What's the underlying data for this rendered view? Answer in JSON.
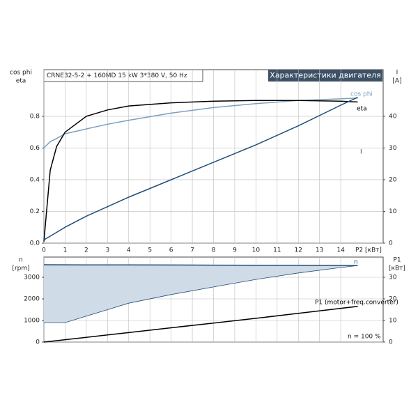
{
  "chart_data": [
    {
      "type": "line",
      "header": "CRNE32-5-2 + 160MD   15 kW   3*380 V, 50 Hz",
      "title": "Характеристики двигателя",
      "ylabel": [
        "cos phi",
        "eta"
      ],
      "y2label": [
        "I",
        "[A]"
      ],
      "xlabel": "P2 [кВт]",
      "xlim": [
        0,
        16
      ],
      "xticks": [
        0,
        1,
        2,
        3,
        4,
        5,
        6,
        7,
        8,
        9,
        10,
        11,
        12,
        13,
        14
      ],
      "ylim": [
        0,
        1.094
      ],
      "yticks": [
        {
          "value": 0,
          "label": "0.0"
        },
        0.2,
        0.4,
        0.6,
        0.8
      ],
      "y2lim": [
        0,
        54.7
      ],
      "y2ticks": [
        0,
        10,
        20,
        30,
        40
      ],
      "grid": true,
      "x": [
        0,
        0.3,
        0.6,
        1,
        2,
        3,
        4,
        6,
        8,
        10,
        12,
        14,
        14.8
      ],
      "series": [
        {
          "name": "cos phi",
          "color": "#7b9fbd",
          "values": [
            0.6,
            0.64,
            0.66,
            0.69,
            0.72,
            0.75,
            0.775,
            0.82,
            0.855,
            0.88,
            0.9,
            0.91,
            0.915
          ]
        },
        {
          "name": "eta",
          "color": "#000000",
          "values": [
            0.01,
            0.46,
            0.61,
            0.7,
            0.8,
            0.84,
            0.865,
            0.885,
            0.895,
            0.9,
            0.9,
            0.895,
            0.89
          ]
        },
        {
          "name": "I",
          "color": "#1f4e79",
          "axis": "y2",
          "values": [
            1,
            2.2,
            3.4,
            5,
            8.5,
            11.5,
            14.5,
            20,
            25.5,
            31,
            37,
            43.5,
            46
          ]
        }
      ]
    },
    {
      "type": "band",
      "ylabel": [
        "n",
        "[rpm]"
      ],
      "y2label": [
        "P1",
        "[кВт]"
      ],
      "xlim": [
        0,
        16
      ],
      "xticks": [
        0,
        1,
        2,
        3,
        4,
        5,
        6,
        7,
        8,
        9,
        10,
        11,
        12,
        13,
        14
      ],
      "ylim": [
        0,
        3935
      ],
      "yticks": [
        0,
        1000,
        2000,
        3000
      ],
      "y2lim": [
        0,
        39.35
      ],
      "y2ticks": [
        0,
        10,
        20,
        30
      ],
      "grid": true,
      "annotation": "n = 100 %",
      "x": [
        0,
        1,
        2,
        3,
        4,
        6,
        8,
        10,
        12,
        14,
        14.8
      ],
      "band_lower": [
        900,
        900,
        1200,
        1500,
        1800,
        2200,
        2550,
        2900,
        3200,
        3450,
        3540
      ],
      "band_color": "#cfdbe6",
      "series": [
        {
          "name": "n",
          "color": "#1f4e79",
          "values": [
            3580,
            3578,
            3575,
            3572,
            3570,
            3566,
            3562,
            3558,
            3553,
            3547,
            3540
          ]
        },
        {
          "name": "P1 (motor+freq.converter)",
          "color": "#000000",
          "axis": "y2",
          "values": [
            0,
            1.1,
            2.2,
            3.3,
            4.4,
            6.6,
            8.8,
            11,
            13.3,
            15.6,
            16.5
          ]
        }
      ]
    }
  ]
}
